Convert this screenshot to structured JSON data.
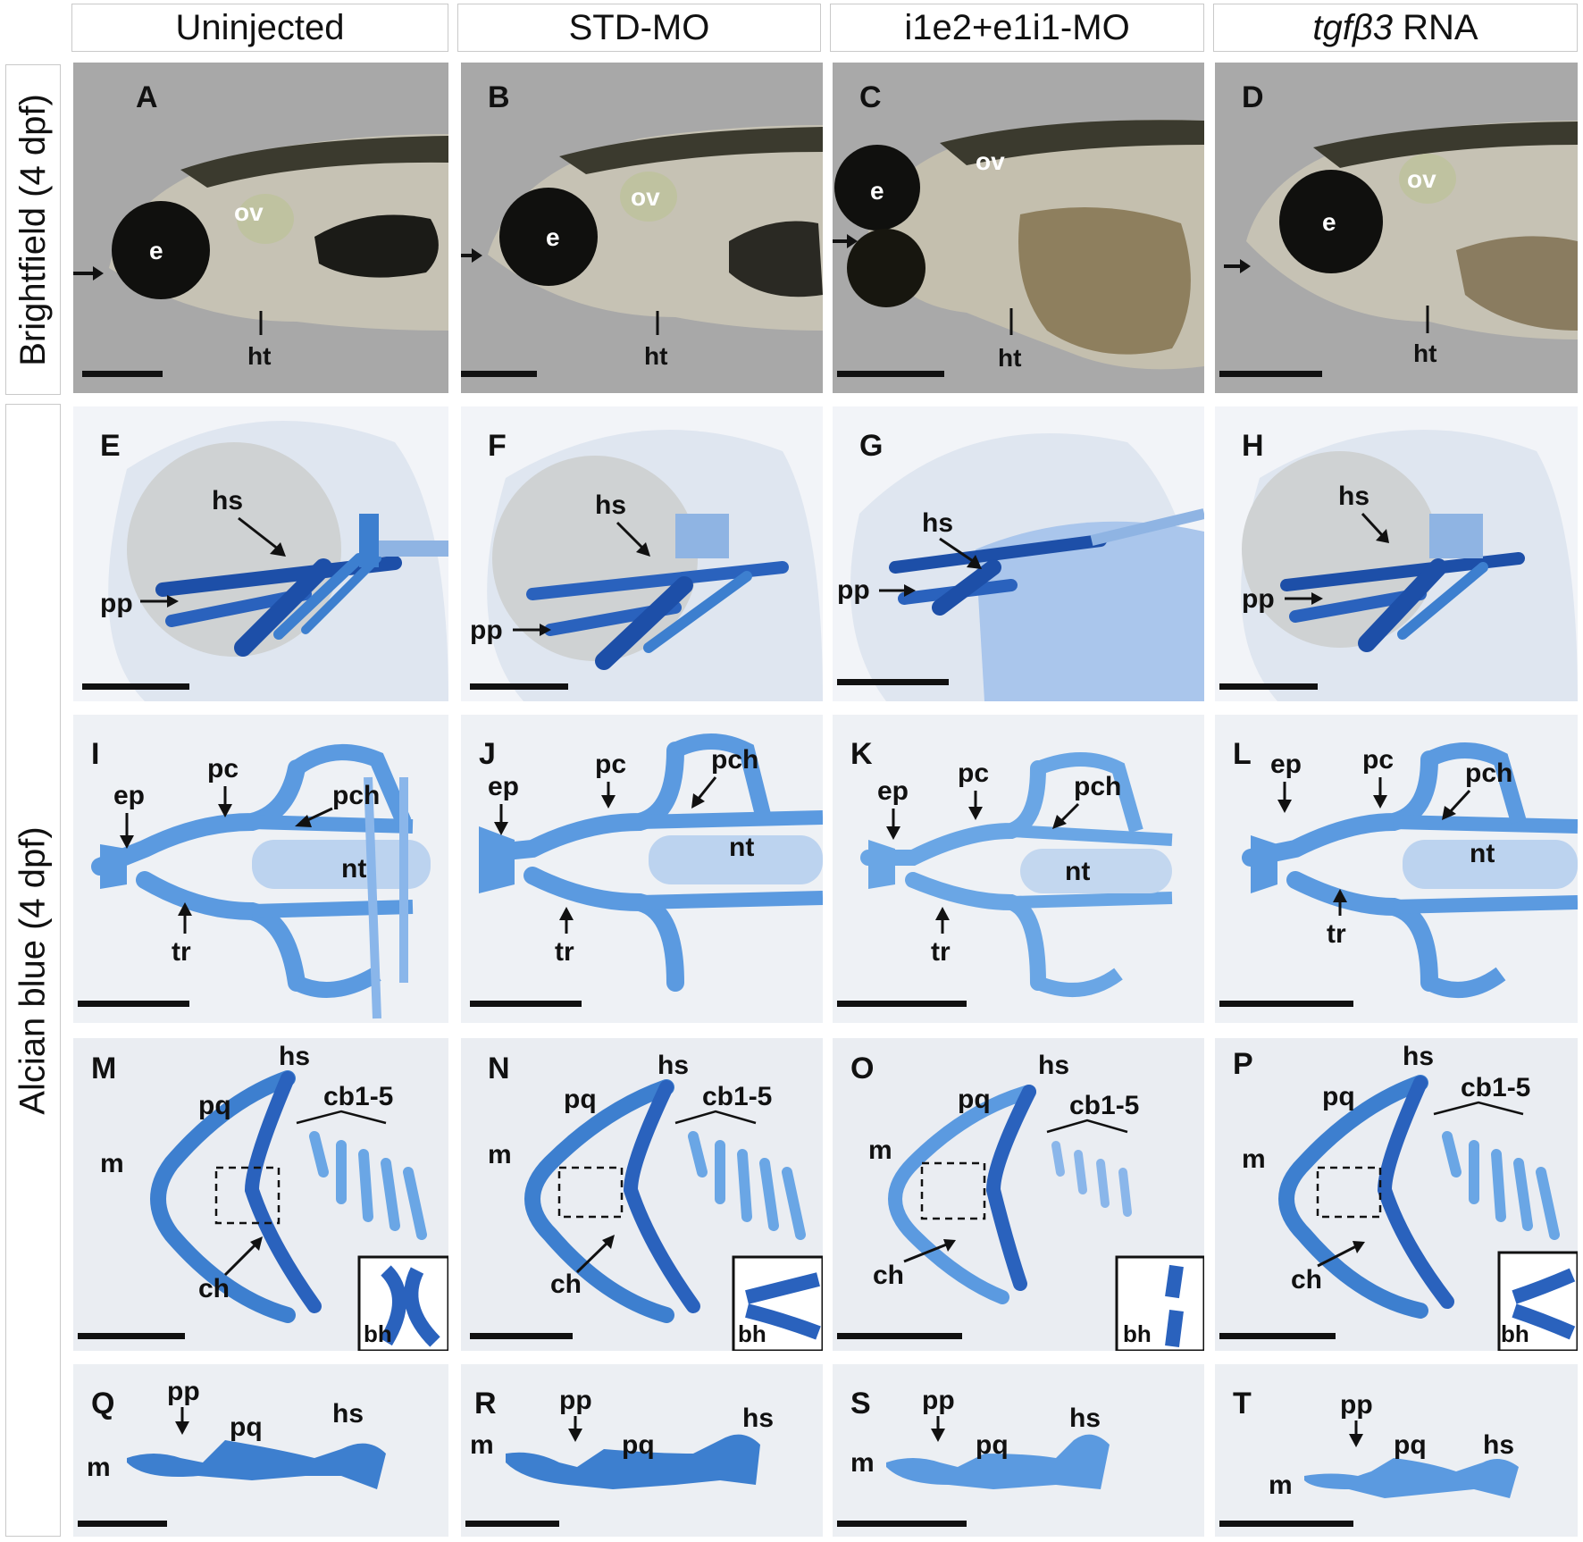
{
  "columns": [
    "Uninjected",
    "STD-MO",
    "i1e2+e1i1-MO",
    "RNA"
  ],
  "column4_italic_prefix": "tgfβ3",
  "row_labels": {
    "brightfield": "Brightfield (4 dpf)",
    "alcian": "Alcian blue (4 dpf)"
  },
  "panel_letters": [
    "A",
    "B",
    "C",
    "D",
    "E",
    "F",
    "G",
    "H",
    "I",
    "J",
    "K",
    "L",
    "M",
    "N",
    "O",
    "P",
    "Q",
    "R",
    "S",
    "T"
  ],
  "labels": {
    "e": "e",
    "ov": "ov",
    "ht": "ht",
    "hs": "hs",
    "pp": "pp",
    "ep": "ep",
    "pc": "pc",
    "pch": "pch",
    "nt": "nt",
    "tr": "tr",
    "pq": "pq",
    "m": "m",
    "ch": "ch",
    "cb": "cb1-5",
    "bh": "bh"
  },
  "colors": {
    "brightfield_bg": "#a9a9a9",
    "alcian_bg": "#e7e9ee",
    "cartilage": "#3d7fcf",
    "cartilage_dark": "#1d4fa8"
  }
}
